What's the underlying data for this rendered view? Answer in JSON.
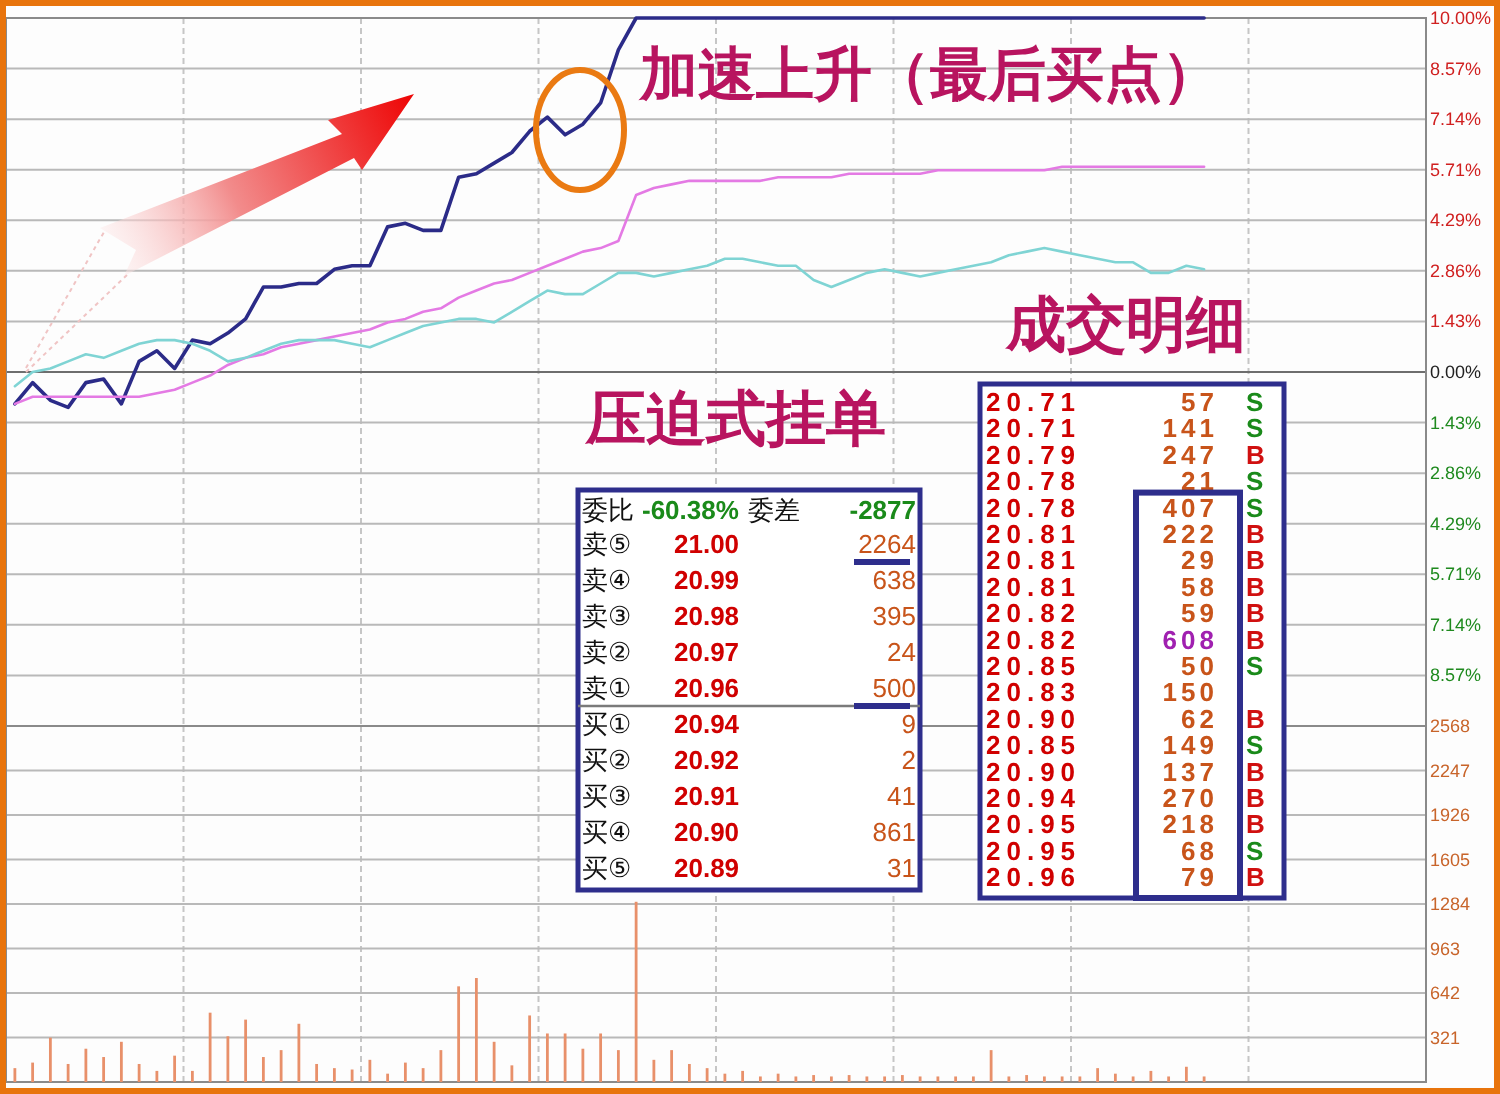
{
  "chart_data": [
    {
      "type": "line",
      "categories": [
        null,
        null,
        null,
        null,
        null,
        null,
        null,
        null,
        null,
        null,
        null,
        null,
        null,
        null,
        null,
        null,
        null,
        null,
        null,
        null,
        null,
        null,
        null,
        null,
        null,
        null,
        null,
        null,
        null,
        null,
        null,
        null,
        null,
        null,
        null,
        null,
        null,
        null,
        null,
        null,
        null,
        null,
        null,
        null,
        null,
        null,
        null,
        null,
        null,
        null,
        null,
        null,
        null,
        null,
        null,
        null,
        null,
        null,
        null,
        null,
        null,
        null,
        null,
        null,
        null,
        null,
        null,
        null,
        null,
        null,
        null,
        null,
        null,
        null,
        null,
        null,
        null,
        null,
        null,
        null
      ],
      "ylim": [
        -10,
        10
      ],
      "yticks": [
        {
          "value": 10,
          "label": "10.00%"
        },
        {
          "value": 8.57,
          "label": "8.57%"
        },
        {
          "value": 7.14,
          "label": "7.14%"
        },
        {
          "value": 5.71,
          "label": "5.71%"
        },
        {
          "value": 4.29,
          "label": "4.29%"
        },
        {
          "value": 2.86,
          "label": "2.86%"
        },
        {
          "value": 1.43,
          "label": "1.43%"
        },
        {
          "value": 0,
          "label": "0.00%"
        },
        {
          "value": -1.43,
          "label": "1.43%"
        },
        {
          "value": -2.86,
          "label": "2.86%"
        },
        {
          "value": -4.29,
          "label": "4.29%"
        },
        {
          "value": -5.71,
          "label": "5.71%"
        },
        {
          "value": -7.14,
          "label": "7.14%"
        },
        {
          "value": -8.57,
          "label": "8.57%"
        }
      ],
      "tick_labels": "y",
      "grid": true,
      "series": [
        {
          "color": "#2b2b88",
          "values": [
            -0.9,
            -0.3,
            -0.8,
            -1.0,
            -0.3,
            -0.2,
            -0.9,
            0.3,
            0.6,
            0.1,
            0.9,
            0.8,
            1.1,
            1.5,
            2.4,
            2.4,
            2.5,
            2.5,
            2.9,
            3.0,
            3.0,
            4.1,
            4.2,
            4.0,
            4.0,
            5.5,
            5.6,
            5.9,
            6.2,
            6.8,
            7.2,
            6.7,
            7.0,
            7.6,
            9.1,
            10.0,
            10.0,
            10.0,
            10.0,
            10.0,
            10.0,
            10.0,
            10.0,
            10.0,
            10.0,
            10.0,
            10.0,
            10.0,
            10.0,
            10.0,
            10.0,
            10.0,
            10.0,
            10.0,
            10.0,
            10.0,
            10.0,
            10.0,
            10.0,
            10.0,
            10.0,
            10.0,
            10.0,
            10.0,
            10.0,
            10.0,
            10.0,
            10.0,
            null,
            null,
            null,
            null,
            null,
            null,
            null,
            null,
            null,
            null,
            null,
            null
          ]
        },
        {
          "color": "#e47ae4",
          "values": [
            -0.9,
            -0.7,
            -0.7,
            -0.7,
            -0.7,
            -0.7,
            -0.7,
            -0.7,
            -0.6,
            -0.5,
            -0.3,
            -0.1,
            0.2,
            0.4,
            0.5,
            0.7,
            0.8,
            0.9,
            1.0,
            1.1,
            1.2,
            1.4,
            1.5,
            1.7,
            1.8,
            2.1,
            2.3,
            2.5,
            2.6,
            2.8,
            3.0,
            3.2,
            3.4,
            3.5,
            3.7,
            5.0,
            5.2,
            5.3,
            5.4,
            5.4,
            5.4,
            5.4,
            5.4,
            5.5,
            5.5,
            5.5,
            5.5,
            5.6,
            5.6,
            5.6,
            5.6,
            5.6,
            5.7,
            5.7,
            5.7,
            5.7,
            5.7,
            5.7,
            5.7,
            5.8,
            5.8,
            5.8,
            5.8,
            5.8,
            5.8,
            5.8,
            5.8,
            5.8,
            null,
            null,
            null,
            null,
            null,
            null,
            null,
            null,
            null,
            null,
            null,
            null
          ]
        },
        {
          "color": "#7fd4d4",
          "values": [
            -0.4,
            0.0,
            0.1,
            0.3,
            0.5,
            0.4,
            0.6,
            0.8,
            0.9,
            0.9,
            0.8,
            0.6,
            0.3,
            0.4,
            0.6,
            0.8,
            0.9,
            0.9,
            0.9,
            0.8,
            0.7,
            0.9,
            1.1,
            1.3,
            1.4,
            1.5,
            1.5,
            1.4,
            1.7,
            2.0,
            2.3,
            2.2,
            2.2,
            2.5,
            2.8,
            2.8,
            2.7,
            2.8,
            2.9,
            3.0,
            3.2,
            3.2,
            3.1,
            3.0,
            3.0,
            2.6,
            2.4,
            2.6,
            2.8,
            2.9,
            2.8,
            2.7,
            2.8,
            2.9,
            3.0,
            3.1,
            3.3,
            3.4,
            3.5,
            3.4,
            3.3,
            3.2,
            3.1,
            3.1,
            2.8,
            2.8,
            3.0,
            2.9,
            null,
            null,
            null,
            null,
            null,
            null,
            null,
            null,
            null,
            null,
            null,
            null
          ]
        }
      ],
      "annotations": [
        "加速上升（最后买点）"
      ]
    },
    {
      "type": "bar",
      "color": "#e8906a",
      "categories": [
        null,
        null,
        null,
        null,
        null,
        null,
        null,
        null,
        null,
        null,
        null,
        null,
        null,
        null,
        null,
        null,
        null,
        null,
        null,
        null,
        null,
        null,
        null,
        null,
        null,
        null,
        null,
        null,
        null,
        null,
        null,
        null,
        null,
        null,
        null,
        null,
        null,
        null,
        null,
        null,
        null,
        null,
        null,
        null,
        null,
        null,
        null,
        null,
        null,
        null,
        null,
        null,
        null,
        null,
        null,
        null,
        null,
        null,
        null,
        null,
        null,
        null,
        null,
        null,
        null,
        null,
        null,
        null,
        null,
        null,
        null,
        null,
        null,
        null,
        null,
        null,
        null,
        null,
        null,
        null
      ],
      "ylim": [
        0,
        2568
      ],
      "yticks": [
        321,
        642,
        963,
        1284,
        1605,
        1926,
        2247,
        2568
      ],
      "tick_labels": "y",
      "grid": true,
      "values": [
        100,
        140,
        320,
        130,
        240,
        180,
        290,
        130,
        80,
        190,
        80,
        500,
        330,
        450,
        180,
        230,
        420,
        130,
        100,
        90,
        160,
        60,
        140,
        100,
        230,
        690,
        750,
        290,
        120,
        480,
        350,
        350,
        240,
        350,
        230,
        1300,
        160,
        230,
        130,
        100,
        60,
        80,
        40,
        60,
        40,
        50,
        40,
        50,
        40,
        40,
        50,
        40,
        40,
        40,
        40,
        230,
        40,
        50,
        40,
        40,
        40,
        100,
        60,
        40,
        80,
        40,
        110,
        40,
        null,
        null,
        null,
        null,
        null,
        null,
        null,
        null,
        null,
        null,
        null,
        null
      ]
    },
    {
      "type": "other",
      "title": "压迫式挂单",
      "annotations": [
        "委比",
        "-60.38%",
        "委差",
        "-2877"
      ],
      "categories": [
        "卖⑤",
        "卖④",
        "卖③",
        "卖②",
        "卖①",
        "买①",
        "买②",
        "买③",
        "买④",
        "买⑤"
      ],
      "data_labels": true,
      "series": [
        {
          "values": [
            21.0,
            20.99,
            20.98,
            20.97,
            20.96,
            20.94,
            20.92,
            20.91,
            20.9,
            20.89
          ],
          "value_labels": [
            "21.00",
            "20.99",
            "20.98",
            "20.97",
            "20.96",
            "20.94",
            "20.92",
            "20.91",
            "20.90",
            "20.89"
          ]
        },
        {
          "values": [
            2264,
            638,
            395,
            24,
            500,
            9,
            2,
            41,
            861,
            31
          ]
        }
      ]
    },
    {
      "type": "other",
      "title": "成交明细",
      "annotations": [
        "20.83",
        "150"
      ],
      "categories": [
        "S",
        "S",
        "B",
        "S",
        "S",
        "B",
        "B",
        "B",
        "B",
        "B",
        "S",
        null,
        "B",
        "S",
        "B",
        "B",
        "B",
        "S",
        "B"
      ],
      "colors": [
        "#1a8a1a",
        "#1a8a1a",
        "#d01010",
        "#1a8a1a",
        "#1a8a1a",
        "#d01010",
        "#d01010",
        "#d01010",
        "#d01010",
        "#d01010",
        "#1a8a1a",
        null,
        "#d01010",
        "#1a8a1a",
        "#d01010",
        "#d01010",
        "#d01010",
        "#1a8a1a",
        "#d01010"
      ],
      "data_labels": true,
      "series": [
        {
          "values": [
            20.71,
            20.71,
            20.79,
            20.78,
            20.78,
            20.81,
            20.81,
            20.81,
            20.82,
            20.82,
            20.85,
            null,
            20.9,
            20.85,
            20.9,
            20.94,
            20.95,
            20.95,
            20.96
          ],
          "value_labels": [
            "20.71",
            "20.71",
            "20.79",
            "20.78",
            "20.78",
            "20.81",
            "20.81",
            "20.81",
            "20.82",
            "20.82",
            "20.85",
            null,
            "20.90",
            "20.85",
            "20.90",
            "20.94",
            "20.95",
            "20.95",
            "20.96"
          ]
        },
        {
          "colors": [
            "#c8541a",
            "#c8541a",
            "#c8541a",
            "#c8541a",
            "#c8541a",
            "#c8541a",
            "#c8541a",
            "#c8541a",
            "#c8541a",
            "#a020b0",
            "#c8541a",
            null,
            "#c8541a",
            "#c8541a",
            "#c8541a",
            "#c8541a",
            "#c8541a",
            "#c8541a",
            "#c8541a"
          ],
          "values": [
            57,
            141,
            247,
            21,
            407,
            222,
            29,
            58,
            59,
            608,
            50,
            null,
            62,
            149,
            137,
            270,
            218,
            68,
            79
          ]
        }
      ]
    }
  ]
}
